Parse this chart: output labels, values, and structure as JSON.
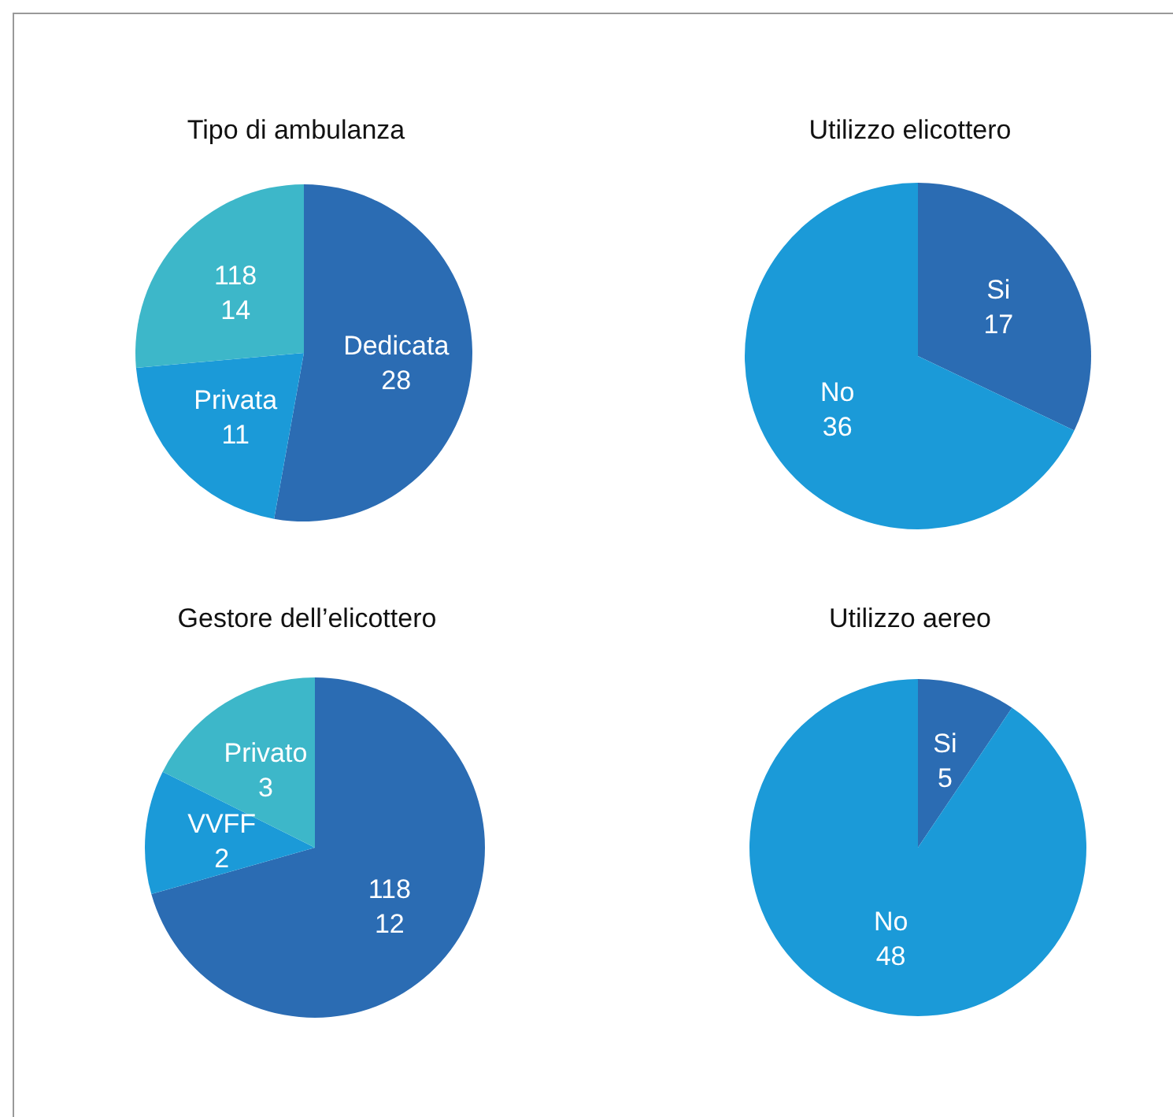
{
  "chart_data": [
    {
      "type": "pie",
      "title": "Tipo di ambulanza",
      "categories": [
        "Dedicata",
        "Privata",
        "118"
      ],
      "values": [
        28,
        11,
        14
      ],
      "colors": [
        "#2b6cb3",
        "#1b9ad8",
        "#3db7c9"
      ],
      "data_labels": true
    },
    {
      "type": "pie",
      "title": "Utilizzo elicottero",
      "categories": [
        "Si",
        "No"
      ],
      "values": [
        17,
        36
      ],
      "colors": [
        "#2b6cb3",
        "#1b9ad8"
      ],
      "data_labels": true
    },
    {
      "type": "pie",
      "title": "Gestore dell’elicottero",
      "categories": [
        "118",
        "VVFF",
        "Privato"
      ],
      "values": [
        12,
        2,
        3
      ],
      "colors": [
        "#2b6cb3",
        "#1b9ad8",
        "#3db7c9"
      ],
      "data_labels": true
    },
    {
      "type": "pie",
      "title": "Utilizzo aereo",
      "categories": [
        "Si",
        "No"
      ],
      "values": [
        5,
        48
      ],
      "colors": [
        "#2b6cb3",
        "#1b9ad8"
      ],
      "data_labels": true
    }
  ]
}
